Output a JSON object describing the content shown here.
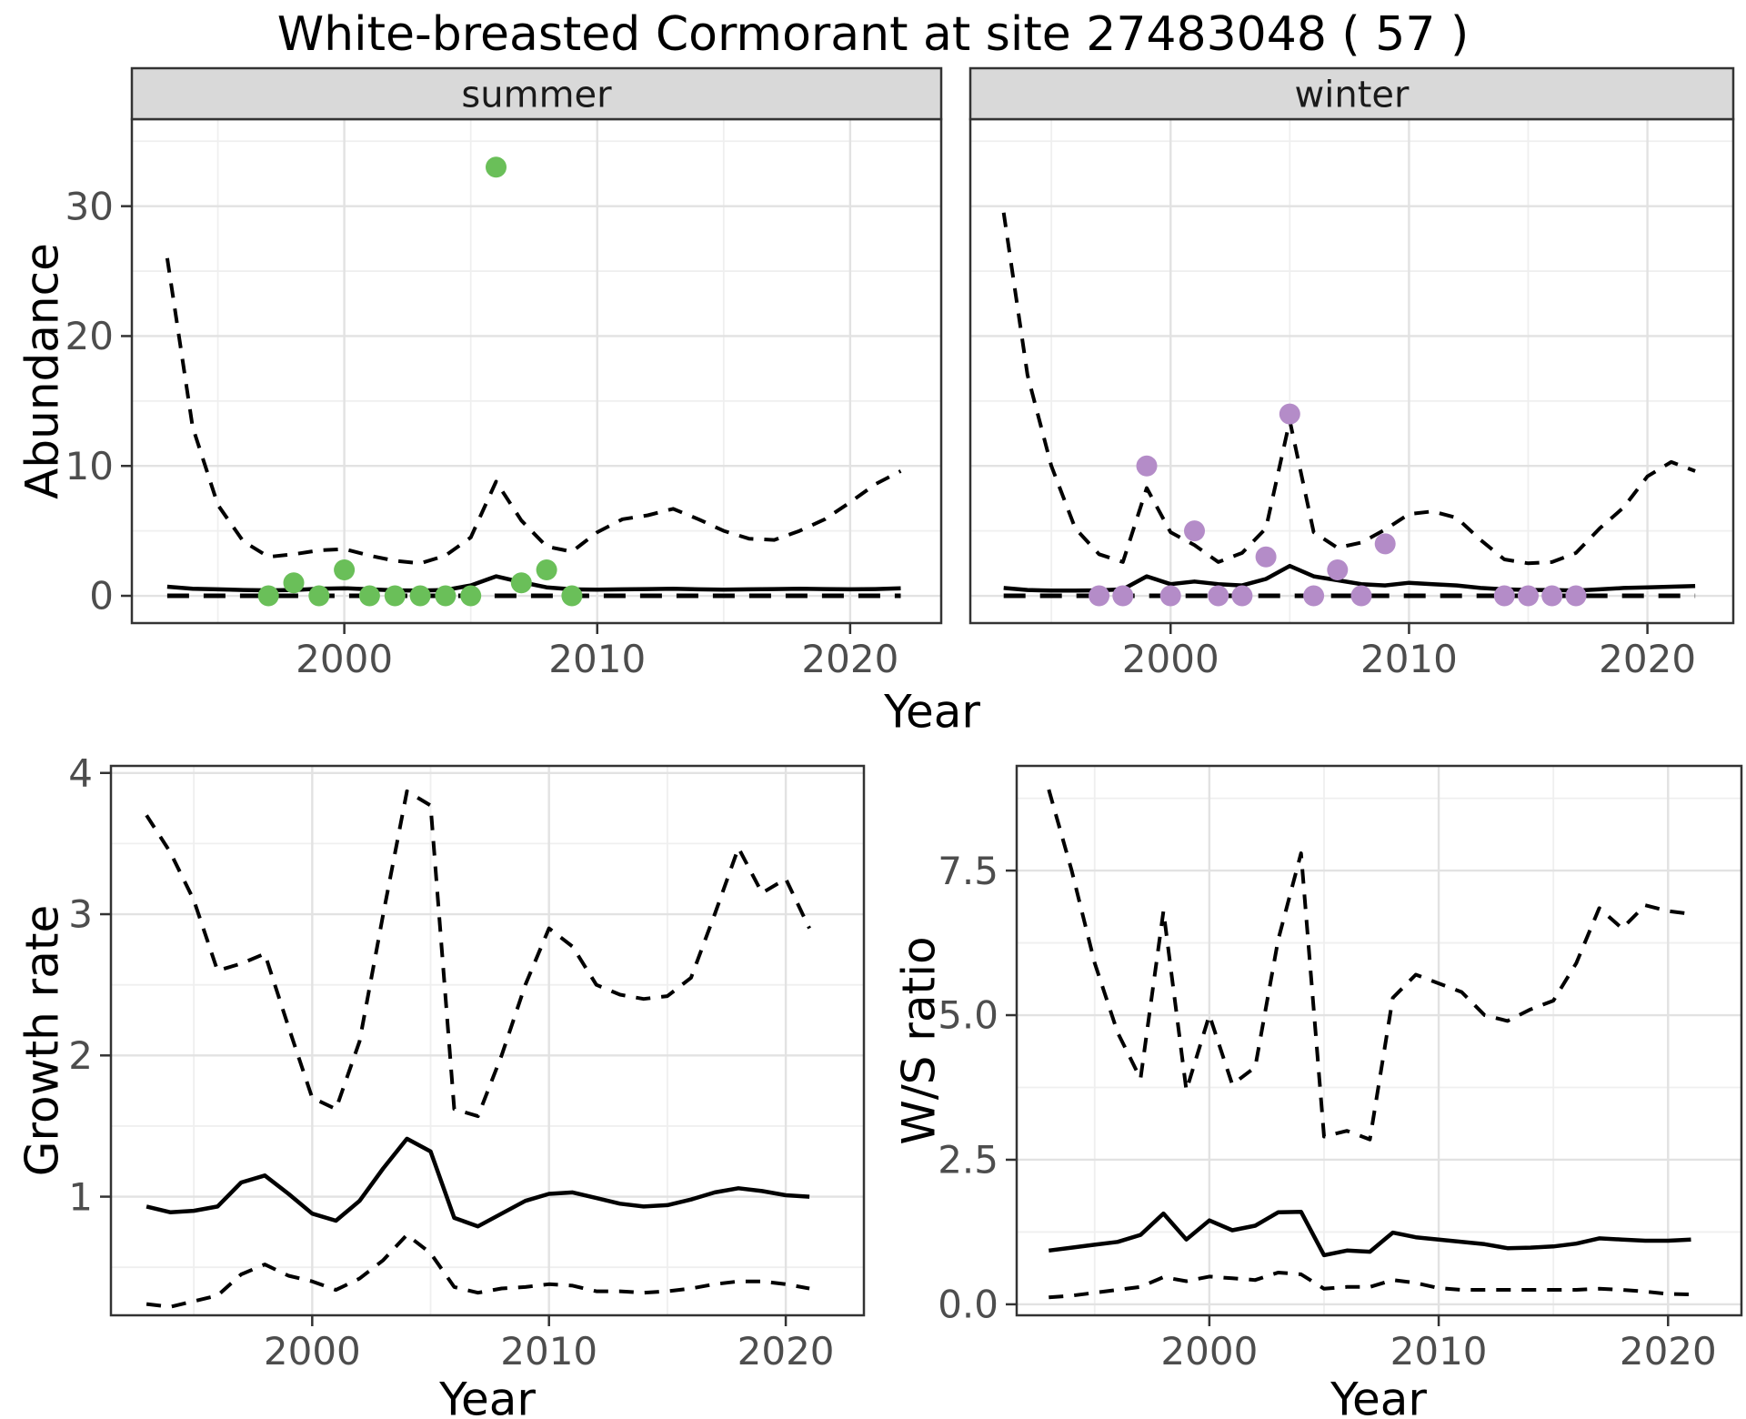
{
  "title": "White-breasted Cormorant at site 27483048 ( 57 )",
  "colors": {
    "summer_point": "#6abf59",
    "winter_point": "#b48cc8",
    "line": "#000000",
    "strip_bg": "#d9d9d9",
    "strip_text": "#1a1a1a",
    "panel_border": "#333333",
    "grid_major": "#e2e2e2",
    "grid_minor": "#efefef",
    "tick_label": "#4d4d4d",
    "axis_title": "#000000"
  },
  "chart_data": [
    {
      "type": "line",
      "facet": "summer",
      "ylabel": "Abundance",
      "xlabel": "Year",
      "xlim": [
        1991.6,
        2023.6
      ],
      "ylim": [
        -2.1,
        36.7
      ],
      "xticks": {
        "values": [
          2000,
          2010,
          2020
        ],
        "labels": [
          "2000",
          "2010",
          "2020"
        ]
      },
      "yticks": {
        "values": [
          0,
          10,
          20,
          30
        ],
        "labels": [
          "0",
          "10",
          "20",
          "30"
        ]
      },
      "xminor": [
        1995,
        2005,
        2015
      ],
      "yminor": [
        5,
        15,
        25,
        35
      ],
      "grid": true,
      "x": [
        1993,
        1994,
        1995,
        1996,
        1997,
        1998,
        1999,
        2000,
        2001,
        2002,
        2003,
        2004,
        2005,
        2006,
        2007,
        2008,
        2009,
        2010,
        2011,
        2012,
        2013,
        2014,
        2015,
        2016,
        2017,
        2018,
        2019,
        2020,
        2021,
        2022
      ],
      "series": [
        {
          "name": "upper-credible-bound",
          "style": "dashed",
          "values": [
            26.0,
            13.0,
            7.0,
            4.2,
            3.0,
            3.2,
            3.5,
            3.6,
            3.1,
            2.7,
            2.5,
            3.1,
            4.5,
            8.8,
            5.8,
            3.8,
            3.4,
            4.9,
            5.9,
            6.2,
            6.7,
            5.9,
            5.0,
            4.4,
            4.3,
            5.0,
            5.9,
            7.2,
            8.6,
            9.6
          ]
        },
        {
          "name": "median-estimate",
          "style": "solid",
          "values": [
            0.7,
            0.55,
            0.5,
            0.45,
            0.42,
            0.45,
            0.55,
            0.58,
            0.5,
            0.42,
            0.4,
            0.45,
            0.8,
            1.5,
            1.05,
            0.65,
            0.5,
            0.48,
            0.5,
            0.52,
            0.55,
            0.5,
            0.48,
            0.5,
            0.52,
            0.55,
            0.52,
            0.5,
            0.52,
            0.58
          ]
        },
        {
          "name": "lower-credible-bound",
          "style": "dashed-heavy",
          "values": [
            0,
            0,
            0,
            0,
            0,
            0,
            0,
            0,
            0,
            0,
            0,
            0,
            0,
            0,
            0,
            0,
            0,
            0,
            0,
            0,
            0,
            0,
            0,
            0,
            0,
            0,
            0,
            0,
            0,
            0
          ]
        }
      ],
      "points": {
        "name": "observed-summer-counts",
        "color_key": "summer_point",
        "x": [
          1997,
          1998,
          1999,
          2000,
          2001,
          2002,
          2003,
          2004,
          2005,
          2006,
          2007,
          2008,
          2009
        ],
        "y": [
          0,
          1,
          0,
          2,
          0,
          0,
          0,
          0,
          0,
          33,
          1,
          2,
          0
        ]
      }
    },
    {
      "type": "line",
      "facet": "winter",
      "ylabel": null,
      "xlabel": "Year",
      "xlim": [
        1991.6,
        2023.6
      ],
      "ylim": [
        -2.1,
        36.7
      ],
      "xticks": {
        "values": [
          2000,
          2010,
          2020
        ],
        "labels": [
          "2000",
          "2010",
          "2020"
        ]
      },
      "yticks": {
        "values": [
          0,
          10,
          20,
          30
        ],
        "labels": [
          "0",
          "10",
          "20",
          "30"
        ]
      },
      "xminor": [
        1995,
        2005,
        2015
      ],
      "yminor": [
        5,
        15,
        25,
        35
      ],
      "grid": true,
      "x": [
        1993,
        1994,
        1995,
        1996,
        1997,
        1998,
        1999,
        2000,
        2001,
        2002,
        2003,
        2004,
        2005,
        2006,
        2007,
        2008,
        2009,
        2010,
        2011,
        2012,
        2013,
        2014,
        2015,
        2016,
        2017,
        2018,
        2019,
        2020,
        2021,
        2022
      ],
      "series": [
        {
          "name": "upper-credible-bound",
          "style": "dashed",
          "values": [
            29.5,
            17.0,
            10.0,
            5.2,
            3.2,
            2.6,
            8.3,
            4.9,
            3.9,
            2.6,
            3.3,
            5.2,
            13.5,
            4.9,
            3.7,
            4.1,
            5.1,
            6.3,
            6.5,
            6.0,
            4.3,
            2.8,
            2.5,
            2.6,
            3.3,
            5.2,
            6.8,
            9.2,
            10.3,
            9.6
          ]
        },
        {
          "name": "median-estimate",
          "style": "solid",
          "values": [
            0.6,
            0.45,
            0.4,
            0.4,
            0.42,
            0.5,
            1.5,
            0.9,
            1.1,
            0.9,
            0.8,
            1.3,
            2.3,
            1.5,
            1.2,
            0.9,
            0.8,
            1.0,
            0.9,
            0.8,
            0.6,
            0.5,
            0.45,
            0.45,
            0.4,
            0.5,
            0.6,
            0.65,
            0.7,
            0.75
          ]
        },
        {
          "name": "lower-credible-bound",
          "style": "dashed-heavy",
          "values": [
            0,
            0,
            0,
            0,
            0,
            0,
            0,
            0,
            0,
            0,
            0,
            0,
            0,
            0,
            0,
            0,
            0,
            0,
            0,
            0,
            0,
            0,
            0,
            0,
            0,
            0,
            0,
            0,
            0,
            0
          ]
        }
      ],
      "points": {
        "name": "observed-winter-counts",
        "color_key": "winter_point",
        "x": [
          1997,
          1998,
          1999,
          2000,
          2001,
          2002,
          2003,
          2004,
          2005,
          2006,
          2007,
          2008,
          2009,
          2014,
          2015,
          2016,
          2017
        ],
        "y": [
          0,
          0,
          10,
          0,
          5,
          0,
          0,
          3,
          14,
          0,
          2,
          0,
          4,
          0,
          0,
          0,
          0
        ]
      }
    },
    {
      "type": "line",
      "facet": null,
      "ylabel": "Growth rate",
      "xlabel": "Year",
      "xlim": [
        1991.5,
        2023.3
      ],
      "ylim": [
        0.16,
        4.05
      ],
      "xticks": {
        "values": [
          2000,
          2010,
          2020
        ],
        "labels": [
          "2000",
          "2010",
          "2020"
        ]
      },
      "yticks": {
        "values": [
          1,
          2,
          3,
          4
        ],
        "labels": [
          "1",
          "2",
          "3",
          "4"
        ]
      },
      "xminor": [
        1995,
        2005,
        2015
      ],
      "yminor": [
        0.5,
        1.5,
        2.5,
        3.5
      ],
      "grid": true,
      "x": [
        1993,
        1994,
        1995,
        1996,
        1997,
        1998,
        1999,
        2000,
        2001,
        2002,
        2003,
        2004,
        2005,
        2006,
        2007,
        2008,
        2009,
        2010,
        2011,
        2012,
        2013,
        2014,
        2015,
        2016,
        2017,
        2018,
        2019,
        2020,
        2021
      ],
      "series": [
        {
          "name": "upper-credible-bound",
          "style": "dashed",
          "values": [
            3.7,
            3.44,
            3.1,
            2.6,
            2.65,
            2.72,
            2.2,
            1.7,
            1.62,
            2.1,
            3.0,
            3.87,
            3.77,
            1.62,
            1.57,
            2.0,
            2.5,
            2.9,
            2.77,
            2.5,
            2.43,
            2.4,
            2.42,
            2.55,
            3.0,
            3.47,
            3.15,
            3.25,
            2.9
          ]
        },
        {
          "name": "median-estimate",
          "style": "solid",
          "values": [
            0.93,
            0.89,
            0.9,
            0.93,
            1.1,
            1.15,
            1.02,
            0.88,
            0.83,
            0.97,
            1.2,
            1.41,
            1.32,
            0.85,
            0.79,
            0.88,
            0.97,
            1.02,
            1.03,
            0.99,
            0.95,
            0.93,
            0.94,
            0.98,
            1.03,
            1.06,
            1.04,
            1.01,
            1.0
          ]
        },
        {
          "name": "lower-credible-bound",
          "style": "dashed",
          "values": [
            0.24,
            0.22,
            0.26,
            0.3,
            0.45,
            0.52,
            0.44,
            0.4,
            0.34,
            0.42,
            0.55,
            0.73,
            0.6,
            0.36,
            0.32,
            0.35,
            0.36,
            0.38,
            0.37,
            0.33,
            0.33,
            0.32,
            0.33,
            0.35,
            0.38,
            0.4,
            0.4,
            0.38,
            0.35
          ]
        }
      ],
      "points": null
    },
    {
      "type": "line",
      "facet": null,
      "ylabel": "W/S ratio",
      "xlabel": "Year",
      "xlim": [
        1991.6,
        2023.2
      ],
      "ylim": [
        -0.19,
        9.31
      ],
      "xticks": {
        "values": [
          2000,
          2010,
          2020
        ],
        "labels": [
          "2000",
          "2010",
          "2020"
        ]
      },
      "yticks": {
        "values": [
          0.0,
          2.5,
          5.0,
          7.5
        ],
        "labels": [
          "0.0",
          "2.5",
          "5.0",
          "7.5"
        ]
      },
      "xminor": [
        1995,
        2005,
        2015
      ],
      "yminor": [
        1.25,
        3.75,
        6.25,
        8.75
      ],
      "grid": true,
      "x": [
        1993,
        1994,
        1995,
        1996,
        1997,
        1998,
        1999,
        2000,
        2001,
        2002,
        2003,
        2004,
        2005,
        2006,
        2007,
        2008,
        2009,
        2010,
        2011,
        2012,
        2013,
        2014,
        2015,
        2016,
        2017,
        2018,
        2019,
        2020,
        2021
      ],
      "series": [
        {
          "name": "upper-credible-bound",
          "style": "dashed",
          "values": [
            8.9,
            7.5,
            5.9,
            4.7,
            3.9,
            6.8,
            3.7,
            5.0,
            3.8,
            4.1,
            6.3,
            7.8,
            2.9,
            3.0,
            2.85,
            5.3,
            5.7,
            5.55,
            5.4,
            5.0,
            4.9,
            5.1,
            5.25,
            5.9,
            6.85,
            6.5,
            6.9,
            6.8,
            6.75
          ]
        },
        {
          "name": "median-estimate",
          "style": "solid",
          "values": [
            0.93,
            0.98,
            1.03,
            1.08,
            1.2,
            1.57,
            1.12,
            1.45,
            1.28,
            1.36,
            1.59,
            1.6,
            0.85,
            0.93,
            0.91,
            1.24,
            1.16,
            1.12,
            1.08,
            1.04,
            0.97,
            0.98,
            1.0,
            1.05,
            1.14,
            1.12,
            1.1,
            1.1,
            1.12
          ]
        },
        {
          "name": "lower-credible-bound",
          "style": "dashed",
          "values": [
            0.12,
            0.15,
            0.2,
            0.25,
            0.3,
            0.47,
            0.4,
            0.48,
            0.45,
            0.42,
            0.55,
            0.52,
            0.27,
            0.3,
            0.3,
            0.42,
            0.37,
            0.28,
            0.25,
            0.25,
            0.25,
            0.25,
            0.25,
            0.25,
            0.27,
            0.25,
            0.22,
            0.18,
            0.17
          ]
        }
      ],
      "points": null
    }
  ]
}
